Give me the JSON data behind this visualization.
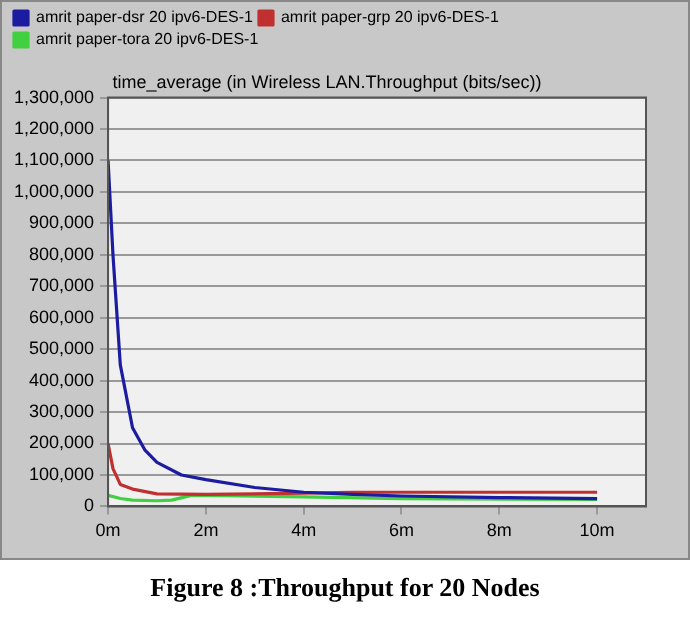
{
  "chart_data": {
    "type": "line",
    "title": "time_average (in Wireless LAN.Throughput (bits/sec))",
    "annotations": [
      "Figure 8 :Throughput for 20 Nodes"
    ],
    "series": [
      {
        "name": "amrit paper-dsr 20 ipv6-DES-1",
        "color": "#1c1ca0",
        "x": [
          0,
          0.1,
          0.25,
          0.5,
          0.75,
          1,
          1.5,
          2,
          3,
          4,
          5,
          6,
          8,
          10
        ],
        "values": [
          1100000,
          800000,
          450000,
          250000,
          180000,
          140000,
          100000,
          85000,
          60000,
          45000,
          38000,
          33000,
          28000,
          25000
        ]
      },
      {
        "name": "amrit paper-grp 20 ipv6-DES-1",
        "color": "#c03030",
        "x": [
          0,
          0.1,
          0.25,
          0.5,
          1,
          2,
          4,
          5,
          10
        ],
        "values": [
          200000,
          120000,
          70000,
          55000,
          40000,
          38000,
          42000,
          45000,
          45000
        ]
      },
      {
        "name": "amrit paper-tora 20 ipv6-DES-1",
        "color": "#40d040",
        "x": [
          0,
          0.25,
          0.5,
          1,
          1.3,
          1.7,
          2,
          4,
          6,
          10
        ],
        "values": [
          35000,
          25000,
          20000,
          18000,
          20000,
          35000,
          35000,
          30000,
          25000,
          22000
        ]
      }
    ],
    "xlim": [
      0,
      11
    ],
    "xticks": [
      {
        "value": 0,
        "label": "0m"
      },
      {
        "value": 2,
        "label": "2m"
      },
      {
        "value": 4,
        "label": "4m"
      },
      {
        "value": 6,
        "label": "6m"
      },
      {
        "value": 8,
        "label": "8m"
      },
      {
        "value": 10,
        "label": "10m"
      }
    ],
    "ylim": [
      0,
      1300000
    ],
    "yticks": [
      0,
      {
        "value": 100000,
        "label": "100,000"
      },
      {
        "value": 200000,
        "label": "200,000"
      },
      {
        "value": 300000,
        "label": "300,000"
      },
      {
        "value": 400000,
        "label": "400,000"
      },
      {
        "value": 500000,
        "label": "500,000"
      },
      {
        "value": 600000,
        "label": "600,000"
      },
      {
        "value": 700000,
        "label": "700,000"
      },
      {
        "value": 800000,
        "label": "800,000"
      },
      {
        "value": 900000,
        "label": "900,000"
      },
      {
        "value": 1000000,
        "label": "1,000,000"
      },
      {
        "value": 1100000,
        "label": "1,100,000"
      },
      {
        "value": 1200000,
        "label": "1,200,000"
      },
      {
        "value": 1300000,
        "label": "1,300,000"
      }
    ],
    "grid": "y",
    "legend": "top left",
    "marker": "none",
    "line_style": "solid"
  }
}
